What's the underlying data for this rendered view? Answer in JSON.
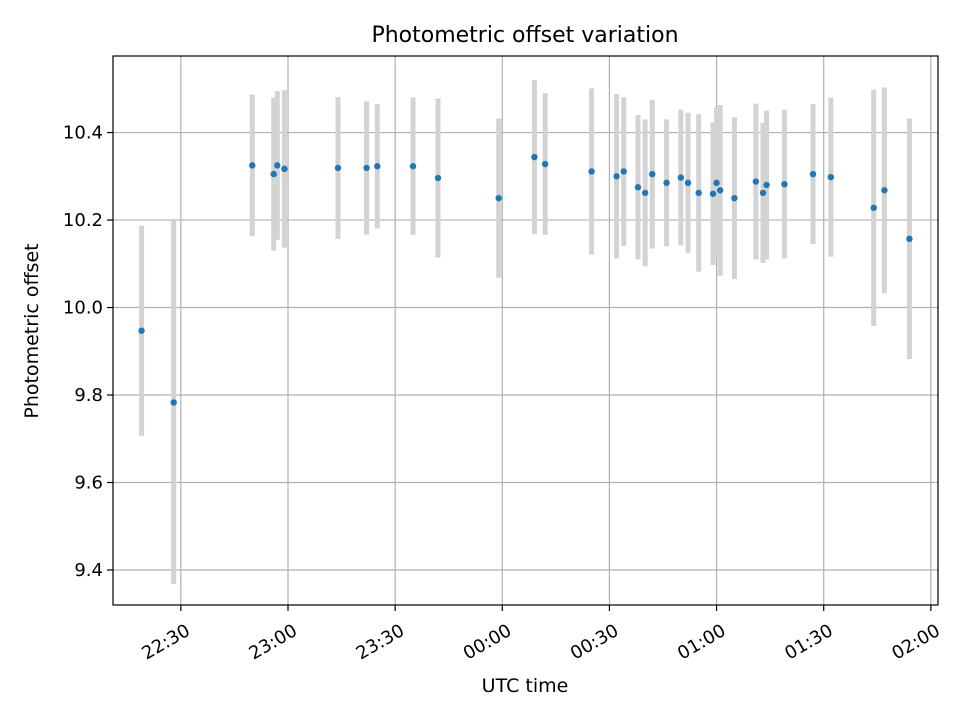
{
  "chart_data": {
    "type": "scatter",
    "title": "Photometric offset variation",
    "xlabel": "UTC time",
    "ylabel": "Photometric offset",
    "grid": true,
    "legend": "none",
    "x_ticks": [
      "22:30",
      "23:00",
      "23:30",
      "00:00",
      "00:30",
      "01:00",
      "01:30",
      "02:00"
    ],
    "y_ticks": [
      "9.4",
      "9.6",
      "9.8",
      "10.0",
      "10.2",
      "10.4"
    ],
    "xlim": [
      "22:11",
      "02:02"
    ],
    "ylim": [
      9.32,
      10.575
    ],
    "colors": {
      "point": "#1f77b4",
      "errorbar": "#d3d3d3",
      "grid": "#b0b0b0"
    },
    "series": [
      {
        "points": [
          {
            "time": "22:19",
            "y": 9.947,
            "err": 0.24
          },
          {
            "time": "22:28",
            "y": 9.783,
            "err": 0.415
          },
          {
            "time": "22:50",
            "y": 10.325,
            "err": 0.162
          },
          {
            "time": "22:56",
            "y": 10.305,
            "err": 0.175
          },
          {
            "time": "22:57",
            "y": 10.325,
            "err": 0.17
          },
          {
            "time": "22:59",
            "y": 10.317,
            "err": 0.18
          },
          {
            "time": "23:14",
            "y": 10.319,
            "err": 0.162
          },
          {
            "time": "23:22",
            "y": 10.319,
            "err": 0.152
          },
          {
            "time": "23:25",
            "y": 10.323,
            "err": 0.142
          },
          {
            "time": "23:35",
            "y": 10.323,
            "err": 0.157
          },
          {
            "time": "23:42",
            "y": 10.296,
            "err": 0.182
          },
          {
            "time": "23:59",
            "y": 10.25,
            "err": 0.182
          },
          {
            "time": "00:09",
            "y": 10.344,
            "err": 0.176
          },
          {
            "time": "00:12",
            "y": 10.328,
            "err": 0.162
          },
          {
            "time": "00:25",
            "y": 10.311,
            "err": 0.19
          },
          {
            "time": "00:32",
            "y": 10.3,
            "err": 0.188
          },
          {
            "time": "00:34",
            "y": 10.311,
            "err": 0.17
          },
          {
            "time": "00:38",
            "y": 10.275,
            "err": 0.165
          },
          {
            "time": "00:40",
            "y": 10.262,
            "err": 0.168
          },
          {
            "time": "00:42",
            "y": 10.305,
            "err": 0.17
          },
          {
            "time": "00:46",
            "y": 10.285,
            "err": 0.145
          },
          {
            "time": "00:50",
            "y": 10.297,
            "err": 0.155
          },
          {
            "time": "00:52",
            "y": 10.285,
            "err": 0.16
          },
          {
            "time": "00:55",
            "y": 10.262,
            "err": 0.18
          },
          {
            "time": "00:59",
            "y": 10.26,
            "err": 0.163
          },
          {
            "time": "01:00",
            "y": 10.285,
            "err": 0.172
          },
          {
            "time": "01:01",
            "y": 10.268,
            "err": 0.195
          },
          {
            "time": "01:05",
            "y": 10.25,
            "err": 0.185
          },
          {
            "time": "01:11",
            "y": 10.288,
            "err": 0.178
          },
          {
            "time": "01:13",
            "y": 10.262,
            "err": 0.16
          },
          {
            "time": "01:14",
            "y": 10.28,
            "err": 0.17
          },
          {
            "time": "01:19",
            "y": 10.282,
            "err": 0.17
          },
          {
            "time": "01:27",
            "y": 10.305,
            "err": 0.16
          },
          {
            "time": "01:32",
            "y": 10.298,
            "err": 0.182
          },
          {
            "time": "01:44",
            "y": 10.228,
            "err": 0.27
          },
          {
            "time": "01:47",
            "y": 10.268,
            "err": 0.235
          },
          {
            "time": "01:54",
            "y": 10.157,
            "err": 0.275
          }
        ]
      }
    ]
  }
}
